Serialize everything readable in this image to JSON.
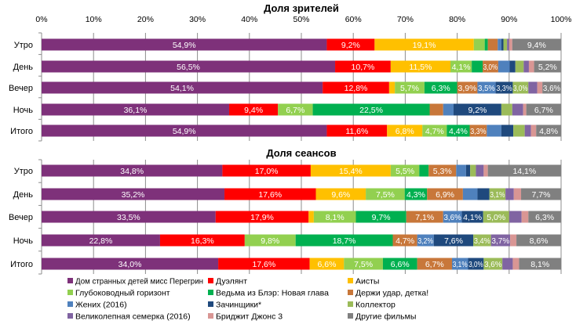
{
  "chart_data": [
    {
      "type": "bar",
      "orientation": "horizontal",
      "stacked": "100%",
      "title": "Доля зрителей",
      "categories": [
        "Утро",
        "День",
        "Вечер",
        "Ночь",
        "Итого"
      ],
      "xlim": [
        0,
        100
      ],
      "xticks": [
        "0%",
        "10%",
        "20%",
        "30%",
        "40%",
        "50%",
        "60%",
        "70%",
        "80%",
        "90%",
        "100%"
      ],
      "grid": true,
      "legend": "bottom",
      "series": [
        {
          "name": "Дом странных детей мисс Перегрин",
          "color": "#7E317A",
          "values": [
            54.9,
            56.5,
            54.1,
            36.1,
            54.9
          ]
        },
        {
          "name": "Дуэлянт",
          "color": "#FF0000",
          "values": [
            9.2,
            10.7,
            12.8,
            9.4,
            11.6
          ]
        },
        {
          "name": "Аисты",
          "color": "#FFC000",
          "values": [
            19.1,
            11.5,
            1.1,
            0,
            6.8
          ]
        },
        {
          "name": "Глубоководный горизонт",
          "color": "#92D050",
          "values": [
            2.1,
            4.1,
            5.7,
            6.7,
            4.7
          ]
        },
        {
          "name": "Ведьма из Блэр: Новая глава",
          "color": "#00B050",
          "values": [
            0.6,
            2.1,
            6.3,
            22.5,
            4.4
          ]
        },
        {
          "name": "Держи удар, детка!",
          "color": "#C8773A",
          "values": [
            1.9,
            3.0,
            3.9,
            2.6,
            3.3
          ]
        },
        {
          "name": "Жених (2016)",
          "color": "#4F81BD",
          "values": [
            0.7,
            2.2,
            3.5,
            2.0,
            2.8
          ]
        },
        {
          "name": "Зачинщики*",
          "color": "#1F497D",
          "values": [
            0.4,
            1.1,
            3.3,
            9.2,
            2.3
          ]
        },
        {
          "name": "Коллектор",
          "color": "#9BBB59",
          "values": [
            0.7,
            1.6,
            3.0,
            2.1,
            2.2
          ]
        },
        {
          "name": "Великолепная семерка (2016)",
          "color": "#8064A2",
          "values": [
            0.4,
            1.0,
            1.7,
            2.1,
            1.2
          ]
        },
        {
          "name": "Бриджит Джонс 3",
          "color": "#D99694",
          "values": [
            0.6,
            1.0,
            1.0,
            0.6,
            1.0
          ]
        },
        {
          "name": "Другие фильмы",
          "color": "#808080",
          "values": [
            9.4,
            5.2,
            3.6,
            6.7,
            4.8
          ]
        }
      ]
    },
    {
      "type": "bar",
      "orientation": "horizontal",
      "stacked": "100%",
      "title": "Доля сеансов",
      "categories": [
        "Утро",
        "День",
        "Вечер",
        "Ночь",
        "Итого"
      ],
      "xlim": [
        0,
        100
      ],
      "grid": true,
      "legend": "bottom",
      "series": [
        {
          "name": "Дом странных детей мисс Перегрин",
          "color": "#7E317A",
          "values": [
            34.8,
            35.2,
            33.5,
            22.8,
            34.0
          ]
        },
        {
          "name": "Дуэлянт",
          "color": "#FF0000",
          "values": [
            17.0,
            17.6,
            17.9,
            16.3,
            17.6
          ]
        },
        {
          "name": "Аисты",
          "color": "#FFC000",
          "values": [
            15.4,
            9.6,
            1.0,
            0,
            6.6
          ]
        },
        {
          "name": "Глубоководный горизонт",
          "color": "#92D050",
          "values": [
            5.5,
            7.5,
            8.1,
            9.8,
            7.5
          ]
        },
        {
          "name": "Ведьма из Блэр: Новая глава",
          "color": "#00B050",
          "values": [
            1.8,
            4.3,
            9.7,
            18.7,
            6.6
          ]
        },
        {
          "name": "Держи удар, детка!",
          "color": "#C8773A",
          "values": [
            5.3,
            6.9,
            7.1,
            4.7,
            6.7
          ]
        },
        {
          "name": "Жених (2016)",
          "color": "#4F81BD",
          "values": [
            1.9,
            2.8,
            3.6,
            3.2,
            3.1
          ]
        },
        {
          "name": "Зачинщики*",
          "color": "#1F497D",
          "values": [
            0.8,
            2.3,
            4.1,
            7.6,
            3.0
          ]
        },
        {
          "name": "Коллектор",
          "color": "#9BBB59",
          "values": [
            1.1,
            3.1,
            5.0,
            3.4,
            3.6
          ]
        },
        {
          "name": "Великолепная семерка (2016)",
          "color": "#8064A2",
          "values": [
            1.5,
            1.6,
            2.4,
            3.7,
            2.0
          ]
        },
        {
          "name": "Бриджит Джонс 3",
          "color": "#D99694",
          "values": [
            0.8,
            1.4,
            1.3,
            1.2,
            1.2
          ]
        },
        {
          "name": "Другие фильмы",
          "color": "#808080",
          "values": [
            14.1,
            7.7,
            6.3,
            8.6,
            8.1
          ]
        }
      ]
    }
  ]
}
